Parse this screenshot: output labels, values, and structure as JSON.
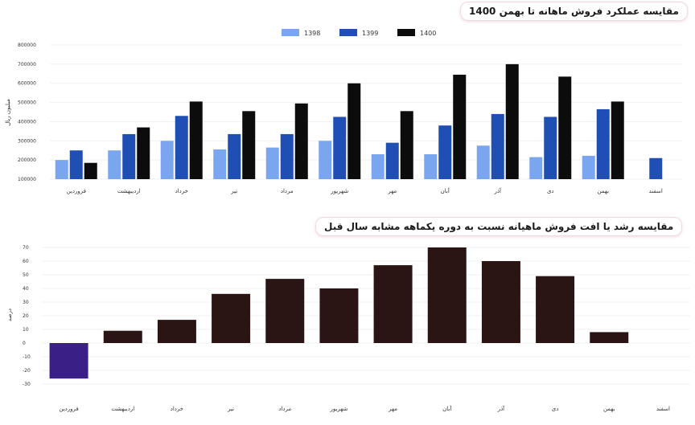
{
  "chart_data": [
    {
      "type": "bar",
      "title": "مقایسه عملکرد فروش ماهانه تا بهمن 1400",
      "ylabel": "میلیون ریال",
      "ylim": [
        100000,
        800000
      ],
      "yticks": [
        "800000",
        "700000",
        "600000",
        "500000",
        "400000",
        "300000",
        "200000",
        "100000"
      ],
      "legend_position": "top-center",
      "grid": true,
      "categories": [
        "فروردین",
        "اردیبهشت",
        "خرداد",
        "تیر",
        "مرداد",
        "شهریور",
        "مهر",
        "آبان",
        "آذر",
        "دی",
        "بهمن",
        "اسفند"
      ],
      "series": [
        {
          "name": "1398",
          "color": "#7aa6f0",
          "values": [
            200000,
            250000,
            300000,
            255000,
            265000,
            300000,
            230000,
            230000,
            275000,
            215000,
            222000,
            null
          ]
        },
        {
          "name": "1399",
          "color": "#1f4fb4",
          "values": [
            250000,
            335000,
            430000,
            335000,
            335000,
            425000,
            290000,
            380000,
            440000,
            425000,
            465000,
            210000
          ]
        },
        {
          "name": "1400",
          "color": "#0c0c0c",
          "values": [
            185000,
            370000,
            505000,
            455000,
            495000,
            600000,
            455000,
            645000,
            700000,
            635000,
            505000,
            null
          ]
        }
      ]
    },
    {
      "type": "bar",
      "title": "مقایسه رشد یا افت فروش ماهیانه نسبت به دوره یکماهه مشابه سال قبل",
      "ylabel": "درصد",
      "ylim": [
        -30,
        70
      ],
      "yticks": [
        "70",
        "60",
        "50",
        "40",
        "30",
        "20",
        "10",
        "0",
        "-10",
        "-20",
        "-30"
      ],
      "grid": true,
      "categories": [
        "فروردین",
        "اردیبهشت",
        "خرداد",
        "تیر",
        "مرداد",
        "شهریور",
        "مهر",
        "آبان",
        "آذر",
        "دی",
        "بهمن",
        "اسفند"
      ],
      "values": [
        -26,
        9,
        17,
        36,
        47,
        40,
        57,
        70,
        60,
        49,
        8,
        null
      ],
      "colors": {
        "positive": "#2a1414",
        "negative": "#3a1f86"
      }
    }
  ]
}
